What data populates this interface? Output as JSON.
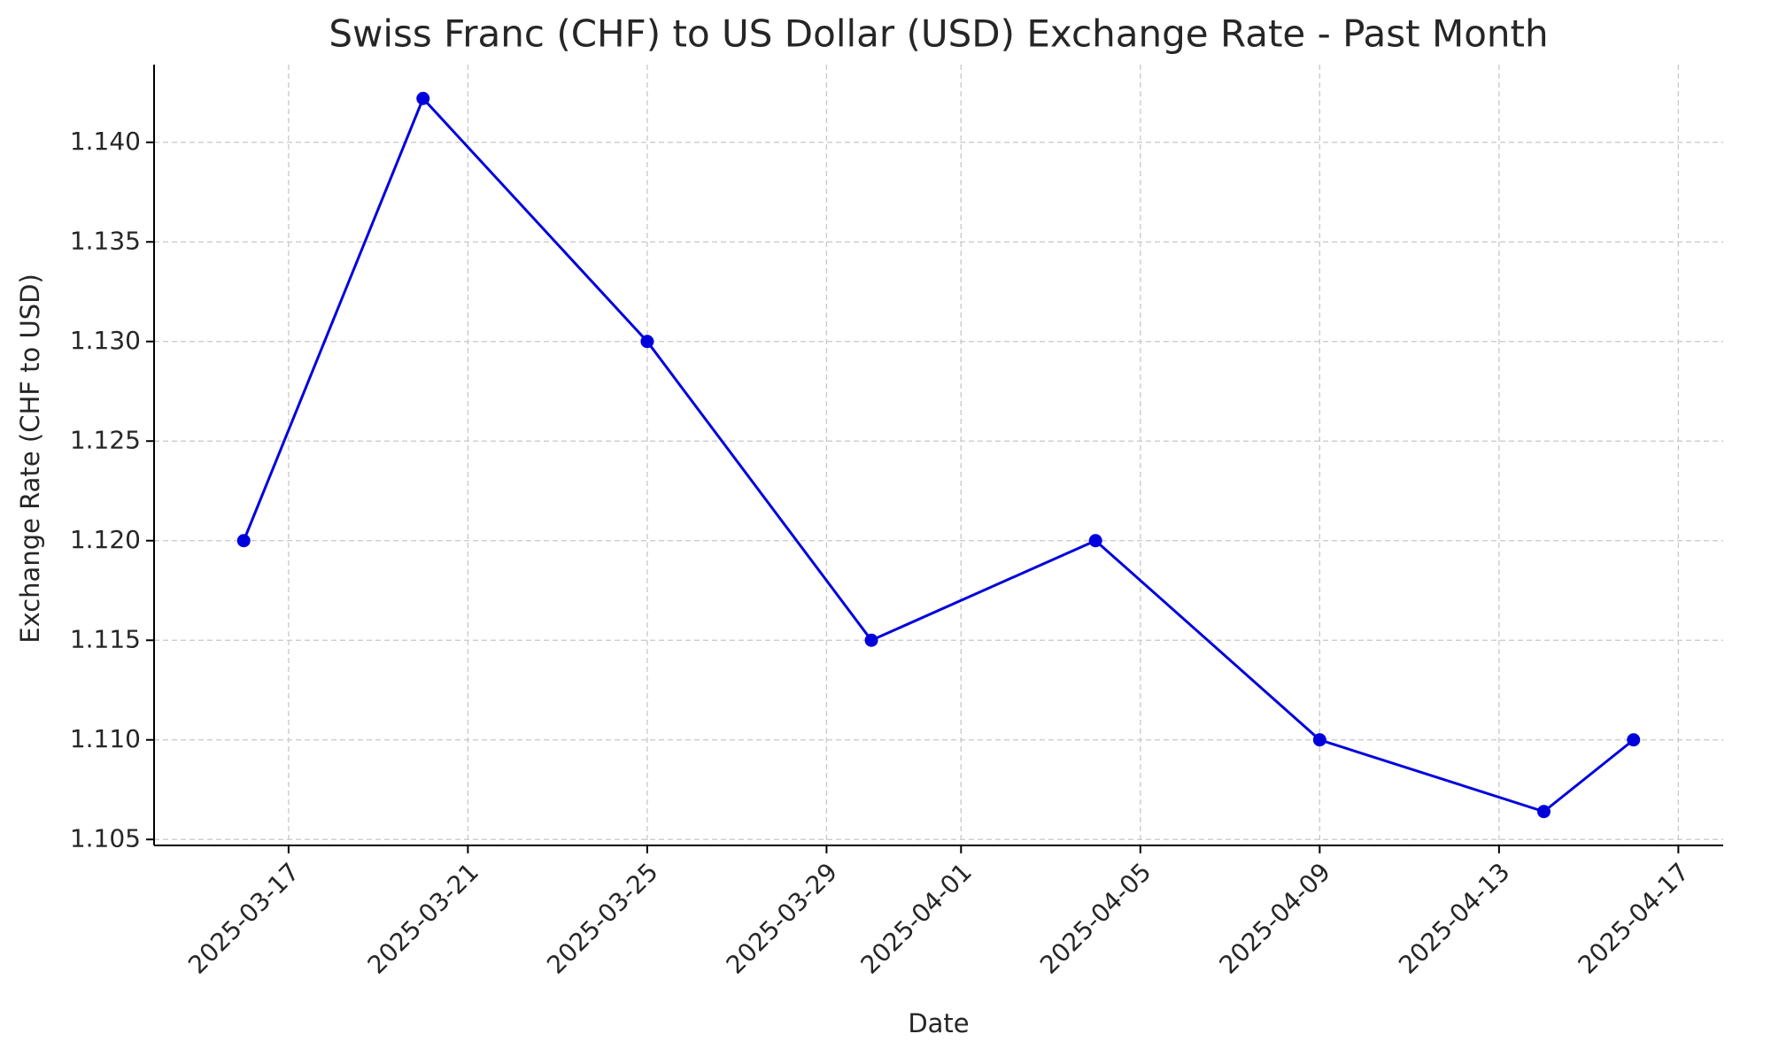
{
  "chart_data": {
    "type": "line",
    "title": "Swiss Franc (CHF) to US Dollar (USD) Exchange Rate - Past Month",
    "xlabel": "Date",
    "ylabel": "Exchange Rate (CHF to USD)",
    "x": [
      "2025-03-16",
      "2025-03-20",
      "2025-03-25",
      "2025-03-30",
      "2025-04-04",
      "2025-04-09",
      "2025-04-14",
      "2025-04-16"
    ],
    "series": [
      {
        "name": "CHF to USD",
        "color": "#0000dd",
        "values": [
          1.12,
          1.1422,
          1.13,
          1.115,
          1.12,
          1.11,
          1.1064,
          1.11
        ]
      }
    ],
    "xlim": [
      "2025-03-14",
      "2025-04-18"
    ],
    "xticks": [
      "2025-03-17",
      "2025-03-21",
      "2025-03-25",
      "2025-03-29",
      "2025-04-01",
      "2025-04-05",
      "2025-04-09",
      "2025-04-13",
      "2025-04-17"
    ],
    "ylim": [
      1.1047,
      1.1439
    ],
    "yticks": [
      1.105,
      {
        "value": 1.11,
        "label": "1.110"
      },
      1.115,
      {
        "value": 1.12,
        "label": "1.120"
      },
      1.125,
      {
        "value": 1.13,
        "label": "1.130"
      },
      1.135,
      {
        "value": 1.14,
        "label": "1.140"
      }
    ],
    "grid": true
  }
}
